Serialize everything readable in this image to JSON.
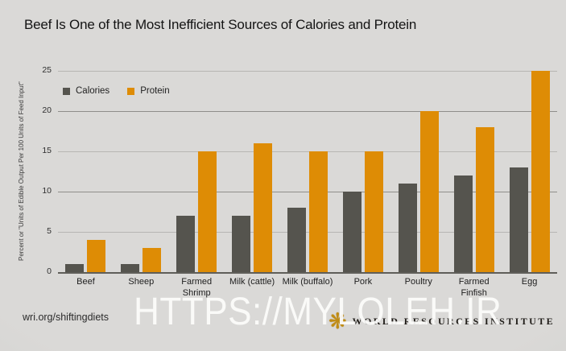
{
  "page": {
    "title": "Beef Is One of the Most Inefficient Sources of Calories and Protein",
    "footer": {
      "source_url": "wri.org/shiftingdiets",
      "org_name": "WORLD RESOURCES INSTITUTE",
      "logo_icon": "wri-tree-icon"
    },
    "watermark": "HTTPS://MYLOLEH.IR"
  },
  "colors": {
    "calories_bar": "#55544e",
    "protein_bar": "#de8c05",
    "background": "#d8d7d5",
    "grid_light": "#b7b6b3",
    "grid_dark": "#8f8e8a",
    "axis_line": "#5f5e59",
    "wri_gold": "#c08c14",
    "watermark_text": "#fcfcfb"
  },
  "chart_data": {
    "type": "bar",
    "title": "Beef Is One of the Most Inefficient Sources of Calories and Protein",
    "categories": [
      "Beef",
      "Sheep",
      "Farmed Shrimp",
      "Milk (cattle)",
      "Milk (buffalo)",
      "Pork",
      "Poultry",
      "Farmed Finfish",
      "Egg"
    ],
    "series": [
      {
        "name": "Calories",
        "color": "#55544e",
        "values": [
          1,
          1,
          7,
          7,
          8,
          10,
          11,
          12,
          13
        ]
      },
      {
        "name": "Protein",
        "color": "#de8c05",
        "values": [
          4,
          3,
          15,
          16,
          15,
          15,
          20,
          18,
          25
        ]
      }
    ],
    "xlabel": "",
    "ylabel": "Percent or \"Units of Edible Output Per 100 Units of Feed Input\"",
    "ylim": [
      0,
      25
    ],
    "yticks": [
      0,
      5,
      10,
      15,
      20,
      25
    ],
    "grid": true,
    "legend_position": "top-left",
    "two_line_labels": [
      "Farmed Shrimp",
      "Farmed Finfish"
    ]
  }
}
